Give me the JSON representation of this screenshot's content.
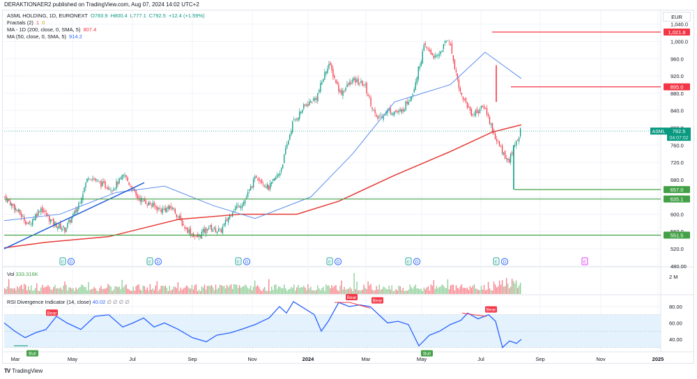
{
  "header": {
    "published": "DERAKTIONAER2 published on TradingView.com, Aug 07, 2024 14:02 UTC+2"
  },
  "legend": {
    "symbol": "ASML HOLDING, 1D, EURONEXT",
    "open": "O783.9",
    "high": "H800.4",
    "low": "L777.1",
    "close": "C792.5",
    "change": "+12.4 (+1.59%)",
    "fractals_label": "Fractals (2)",
    "fractals_v1": "1",
    "fractals_v2": "0",
    "ma200_label": "MA - 1D (200, close, 0, SMA, 5)",
    "ma200_value": "807.4",
    "ma50_label": "MA (50, close, 0, SMA, 5)",
    "ma50_value": "914.2"
  },
  "volume_legend": {
    "label": "Vol",
    "value": "333.316K"
  },
  "rsi_legend": {
    "label": "RSI Divergence Indicator (14, close)",
    "value": "40.02",
    "extras": "∅ ∅ ∅ ∅"
  },
  "price_axis": {
    "currency": "EUR",
    "ticks": [
      "1,040.0",
      "1,000.0",
      "960.0",
      "920.0",
      "880.0",
      "840.0",
      "800.0",
      "760.0",
      "720.0",
      "680.0",
      "640.0",
      "600.0",
      "560.0",
      "520.0",
      "480.00"
    ],
    "labels": [
      {
        "text": "1,021.8",
        "value": 1021.8,
        "color": "#f23645"
      },
      {
        "text": "895.0",
        "value": 895.0,
        "color": "#f23645"
      },
      {
        "text": "657.0",
        "value": 657.0,
        "color": "#43a047"
      },
      {
        "text": "635.1",
        "value": 635.1,
        "color": "#43a047"
      },
      {
        "text": "551.5",
        "value": 551.5,
        "color": "#43a047"
      }
    ],
    "current": {
      "symbol": "ASML",
      "price": "792.5",
      "countdown": "04:07:02",
      "color": "#089981"
    }
  },
  "volume_axis": {
    "tick": "2 M"
  },
  "rsi_axis": {
    "ticks": [
      "80.00",
      "60.00",
      "40.00"
    ]
  },
  "time_axis": {
    "labels": [
      "Mar",
      "May",
      "Jul",
      "Sep",
      "Nov",
      "2024",
      "Mar",
      "May",
      "Jul",
      "Sep",
      "Nov",
      "2025"
    ]
  },
  "event_markers": {
    "earnings_label": "E",
    "dividend_label": "D"
  },
  "colors": {
    "up": "#089981",
    "down": "#f23645",
    "ma200": "#e53935",
    "ma50": "#5b8def",
    "rsi": "#2962ff",
    "rsi_band": "#e3f2fd",
    "support": "#43a047",
    "resistance": "#f23645",
    "trendline": "#1e5bd6"
  },
  "footer": {
    "brand": "TradingView",
    "logo": "TV"
  },
  "chart_data": {
    "type": "candlestick",
    "title": "ASML HOLDING, 1D, EURONEXT",
    "xlabel": "",
    "ylabel": "EUR",
    "ylim": [
      480,
      1040
    ],
    "time_labels": [
      "Mar 2023",
      "May 2023",
      "Jul 2023",
      "Sep 2023",
      "Nov 2023",
      "2024",
      "Mar 2024",
      "May 2024",
      "Jul 2024",
      "Sep 2024",
      "Nov 2024",
      "2025"
    ],
    "close_path": [
      {
        "t": "2023-02-20",
        "close": 640
      },
      {
        "t": "2023-03-01",
        "close": 610
      },
      {
        "t": "2023-03-15",
        "close": 575
      },
      {
        "t": "2023-04-01",
        "close": 615
      },
      {
        "t": "2023-04-20",
        "close": 580
      },
      {
        "t": "2023-05-05",
        "close": 565
      },
      {
        "t": "2023-05-20",
        "close": 610
      },
      {
        "t": "2023-06-01",
        "close": 690
      },
      {
        "t": "2023-06-15",
        "close": 670
      },
      {
        "t": "2023-07-01",
        "close": 660
      },
      {
        "t": "2023-07-10",
        "close": 690
      },
      {
        "t": "2023-07-20",
        "close": 640
      },
      {
        "t": "2023-08-01",
        "close": 625
      },
      {
        "t": "2023-08-15",
        "close": 610
      },
      {
        "t": "2023-09-01",
        "close": 615
      },
      {
        "t": "2023-09-15",
        "close": 570
      },
      {
        "t": "2023-10-01",
        "close": 545
      },
      {
        "t": "2023-10-15",
        "close": 570
      },
      {
        "t": "2023-10-31",
        "close": 560
      },
      {
        "t": "2023-11-15",
        "close": 610
      },
      {
        "t": "2023-12-01",
        "close": 630
      },
      {
        "t": "2023-12-15",
        "close": 690
      },
      {
        "t": "2024-01-02",
        "close": 660
      },
      {
        "t": "2024-01-15",
        "close": 700
      },
      {
        "t": "2024-01-25",
        "close": 810
      },
      {
        "t": "2024-02-10",
        "close": 850
      },
      {
        "t": "2024-02-25",
        "close": 870
      },
      {
        "t": "2024-03-08",
        "close": 950
      },
      {
        "t": "2024-03-20",
        "close": 880
      },
      {
        "t": "2024-04-05",
        "close": 910
      },
      {
        "t": "2024-04-15",
        "close": 900
      },
      {
        "t": "2024-04-25",
        "close": 820
      },
      {
        "t": "2024-05-10",
        "close": 840
      },
      {
        "t": "2024-05-25",
        "close": 835
      },
      {
        "t": "2024-06-05",
        "close": 880
      },
      {
        "t": "2024-06-15",
        "close": 990
      },
      {
        "t": "2024-06-28",
        "close": 960
      },
      {
        "t": "2024-07-10",
        "close": 1010
      },
      {
        "t": "2024-07-17",
        "close": 880
      },
      {
        "t": "2024-07-24",
        "close": 830
      },
      {
        "t": "2024-07-30",
        "close": 850
      },
      {
        "t": "2024-08-02",
        "close": 770
      },
      {
        "t": "2024-08-05",
        "close": 720
      },
      {
        "t": "2024-08-07",
        "close": 792.5
      }
    ],
    "series": [
      {
        "name": "MA 200 (SMA)",
        "last": 807.4,
        "points": [
          [
            0,
            522
          ],
          [
            60,
            535
          ],
          [
            150,
            548
          ],
          [
            250,
            588
          ],
          [
            340,
            600
          ],
          [
            420,
            600
          ],
          [
            480,
            630
          ],
          [
            560,
            690
          ],
          [
            640,
            745
          ],
          [
            700,
            790
          ],
          [
            742,
            807
          ]
        ]
      },
      {
        "name": "MA 50 (SMA)",
        "last": 914.2,
        "points": [
          [
            0,
            585
          ],
          [
            80,
            600
          ],
          [
            160,
            650
          ],
          [
            230,
            665
          ],
          [
            300,
            620
          ],
          [
            360,
            590
          ],
          [
            440,
            640
          ],
          [
            500,
            740
          ],
          [
            560,
            860
          ],
          [
            600,
            880
          ],
          [
            640,
            900
          ],
          [
            690,
            975
          ],
          [
            742,
            914
          ]
        ]
      }
    ],
    "horizontal_levels": [
      {
        "value": 1021.8,
        "type": "resistance"
      },
      {
        "value": 895.0,
        "type": "resistance"
      },
      {
        "value": 657.0,
        "type": "support"
      },
      {
        "value": 635.1,
        "type": "support"
      },
      {
        "value": 551.5,
        "type": "support"
      }
    ],
    "trendline": {
      "from": [
        "2023-02-20",
        520
      ],
      "to": [
        "2023-07-10",
        673
      ]
    },
    "volume": {
      "last": "333.316K",
      "axis_tick": "2 M"
    },
    "rsi": {
      "period": 14,
      "last": 40.02,
      "band": [
        30,
        70
      ],
      "ylim": [
        20,
        90
      ],
      "points": [
        [
          0,
          60
        ],
        [
          15,
          50
        ],
        [
          30,
          42
        ],
        [
          45,
          48
        ],
        [
          60,
          52
        ],
        [
          75,
          68
        ],
        [
          90,
          60
        ],
        [
          110,
          52
        ],
        [
          130,
          68
        ],
        [
          150,
          70
        ],
        [
          170,
          55
        ],
        [
          185,
          60
        ],
        [
          200,
          66
        ],
        [
          215,
          55
        ],
        [
          230,
          60
        ],
        [
          250,
          52
        ],
        [
          270,
          42
        ],
        [
          290,
          37
        ],
        [
          305,
          45
        ],
        [
          325,
          48
        ],
        [
          340,
          52
        ],
        [
          360,
          58
        ],
        [
          380,
          66
        ],
        [
          395,
          80
        ],
        [
          405,
          72
        ],
        [
          415,
          86
        ],
        [
          430,
          78
        ],
        [
          445,
          70
        ],
        [
          455,
          50
        ],
        [
          465,
          62
        ],
        [
          480,
          85
        ],
        [
          495,
          80
        ],
        [
          510,
          82
        ],
        [
          525,
          80
        ],
        [
          535,
          72
        ],
        [
          550,
          60
        ],
        [
          565,
          62
        ],
        [
          580,
          58
        ],
        [
          595,
          32
        ],
        [
          610,
          45
        ],
        [
          625,
          50
        ],
        [
          640,
          58
        ],
        [
          655,
          63
        ],
        [
          665,
          72
        ],
        [
          680,
          65
        ],
        [
          695,
          70
        ],
        [
          705,
          62
        ],
        [
          715,
          30
        ],
        [
          725,
          38
        ],
        [
          735,
          35
        ],
        [
          742,
          40
        ]
      ]
    },
    "divergence_labels": [
      {
        "text": "Bull",
        "x": 40,
        "rsi": 31
      },
      {
        "text": "Bear",
        "x": 68,
        "rsi": 67
      },
      {
        "text": "Bear",
        "x": 498,
        "rsi": 86
      },
      {
        "text": "Bear",
        "x": 535,
        "rsi": 82
      },
      {
        "text": "Bull",
        "x": 606,
        "rsi": 31
      },
      {
        "text": "Bear",
        "x": 698,
        "rsi": 71
      }
    ]
  }
}
